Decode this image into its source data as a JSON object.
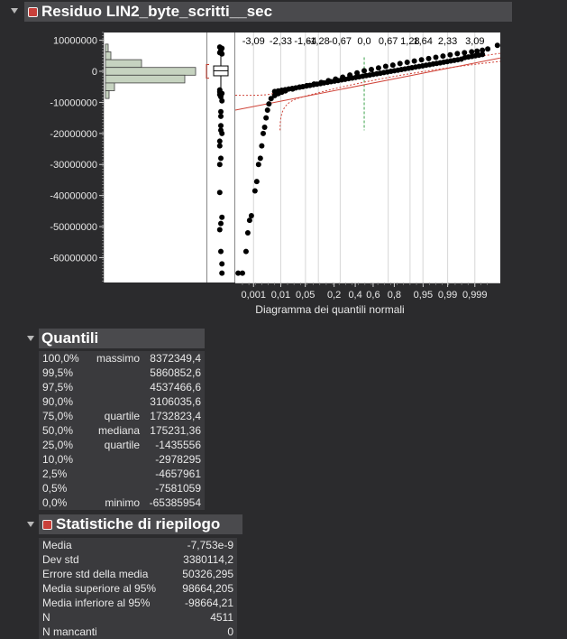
{
  "residuo": {
    "title": "Residuo LIN2_byte_scritti__sec"
  },
  "plot": {
    "y_ticks": [
      "10000000",
      "0",
      "-10000000",
      "-20000000",
      "-30000000",
      "-40000000",
      "-50000000",
      "-60000000"
    ],
    "y_values": [
      10000000,
      0,
      -10000000,
      -20000000,
      -30000000,
      -40000000,
      -50000000,
      -60000000
    ],
    "top_ticks": [
      "-3,09",
      "-2,33",
      "-1,64",
      "-1,28",
      "-0,67",
      "0,0",
      "0,67",
      "1,28",
      "1,64",
      "2,33",
      "3,09"
    ],
    "bottom_ticks": [
      "0,001",
      "0,01",
      "0,05",
      "0,2",
      "0,4",
      "0,6",
      "0,8",
      "0,95",
      "0,99",
      "0,999"
    ],
    "xlabel": "Diagramma dei quantili normali"
  },
  "chart_data": {
    "type": "scatter",
    "ylim": [
      -68000000,
      12500000
    ],
    "xlim": [
      -3.6,
      3.8
    ],
    "histogram_bins": [
      {
        "center": 7500000,
        "count": 3
      },
      {
        "center": 5000000,
        "count": 6
      },
      {
        "center": 2500000,
        "count": 40
      },
      {
        "center": 0,
        "count": 100
      },
      {
        "center": -2500000,
        "count": 88
      },
      {
        "center": -5000000,
        "count": 10
      },
      {
        "center": -7500000,
        "count": 4
      }
    ],
    "boxplot": {
      "min": -65385954,
      "q1": -1435556,
      "median": 175231.36,
      "q3": 1732823.4,
      "max": 8372349.4
    },
    "box_outliers": [
      7800000,
      7400000,
      6700000,
      6000000,
      5600000,
      -6000000,
      -6600000,
      -7100000,
      -7500000,
      -8200000,
      -9500000,
      -13000000,
      -14500000,
      -17500000,
      -19000000,
      -20000000,
      -22500000,
      -24000000,
      -28000000,
      -30000000,
      -39000000,
      -47000000,
      -49000000,
      -51000000,
      -58000000,
      -62000000,
      -65000000
    ],
    "quantile_points": [
      [
        -3.52,
        -65000000
      ],
      [
        -3.4,
        -65000000
      ],
      [
        -3.3,
        -58000000
      ],
      [
        -3.25,
        -52000000
      ],
      [
        -3.2,
        -48000000
      ],
      [
        -3.15,
        -46500000
      ],
      [
        -3.05,
        -38500000
      ],
      [
        -3.0,
        -35500000
      ],
      [
        -2.95,
        -30000000
      ],
      [
        -2.9,
        -28000000
      ],
      [
        -2.86,
        -24000000
      ],
      [
        -2.82,
        -20000000
      ],
      [
        -2.78,
        -18000000
      ],
      [
        -2.74,
        -15000000
      ],
      [
        -2.7,
        -12500000
      ],
      [
        -2.66,
        -10500000
      ],
      [
        -2.6,
        -8800000
      ],
      [
        -2.5,
        -7800000
      ],
      [
        -2.4,
        -7200000
      ],
      [
        -2.3,
        -6700000
      ],
      [
        -2.2,
        -6300000
      ],
      [
        -2.0,
        -5700000
      ],
      [
        -1.8,
        -5100000
      ],
      [
        -1.6,
        -4600000
      ],
      [
        -1.4,
        -4100000
      ],
      [
        -1.2,
        -3600000
      ],
      [
        -1.0,
        -3000000
      ],
      [
        -0.8,
        -2500000
      ],
      [
        -0.6,
        -1900000
      ],
      [
        -0.4,
        -1200000
      ],
      [
        -0.2,
        -500000
      ],
      [
        0,
        175000
      ],
      [
        0.2,
        600000
      ],
      [
        0.4,
        1100000
      ],
      [
        0.6,
        1600000
      ],
      [
        0.8,
        2000000
      ],
      [
        1.0,
        2500000
      ],
      [
        1.2,
        2900000
      ],
      [
        1.4,
        3300000
      ],
      [
        1.6,
        3700000
      ],
      [
        1.8,
        4100000
      ],
      [
        2.0,
        4500000
      ],
      [
        2.2,
        4900000
      ],
      [
        2.4,
        5300000
      ],
      [
        2.6,
        5700000
      ],
      [
        2.8,
        6000000
      ],
      [
        3.0,
        6300000
      ],
      [
        3.15,
        6500000
      ],
      [
        3.3,
        6800000
      ],
      [
        3.45,
        7200000
      ],
      [
        3.72,
        8372349
      ]
    ],
    "fit_line": [
      [
        -3.6,
        -12500000
      ],
      [
        3.8,
        4300000
      ]
    ]
  },
  "quantili": {
    "title": "Quantili",
    "rows": [
      {
        "pct": "100,0%",
        "label": "massimo",
        "value": "8372349,4"
      },
      {
        "pct": "99,5%",
        "label": "",
        "value": "5860852,6"
      },
      {
        "pct": "97,5%",
        "label": "",
        "value": "4537466,6"
      },
      {
        "pct": "90,0%",
        "label": "",
        "value": "3106035,6"
      },
      {
        "pct": "75,0%",
        "label": "quartile",
        "value": "1732823,4"
      },
      {
        "pct": "50,0%",
        "label": "mediana",
        "value": "175231,36"
      },
      {
        "pct": "25,0%",
        "label": "quartile",
        "value": "-1435556"
      },
      {
        "pct": "10,0%",
        "label": "",
        "value": "-2978295"
      },
      {
        "pct": "2,5%",
        "label": "",
        "value": "-4657961"
      },
      {
        "pct": "0,5%",
        "label": "",
        "value": "-7581059"
      },
      {
        "pct": "0,0%",
        "label": "minimo",
        "value": "-65385954"
      }
    ]
  },
  "statistiche": {
    "title": "Statistiche di riepilogo",
    "rows": [
      {
        "label": "Media",
        "value": "-7,753e-9"
      },
      {
        "label": "Dev std",
        "value": "3380114,2"
      },
      {
        "label": "Errore std della media",
        "value": "50326,295"
      },
      {
        "label": "Media superiore al 95%",
        "value": "98664,205"
      },
      {
        "label": "Media inferiore al 95%",
        "value": "-98664,21"
      },
      {
        "label": "N",
        "value": "4511"
      },
      {
        "label": "N mancanti",
        "value": "0"
      }
    ]
  }
}
